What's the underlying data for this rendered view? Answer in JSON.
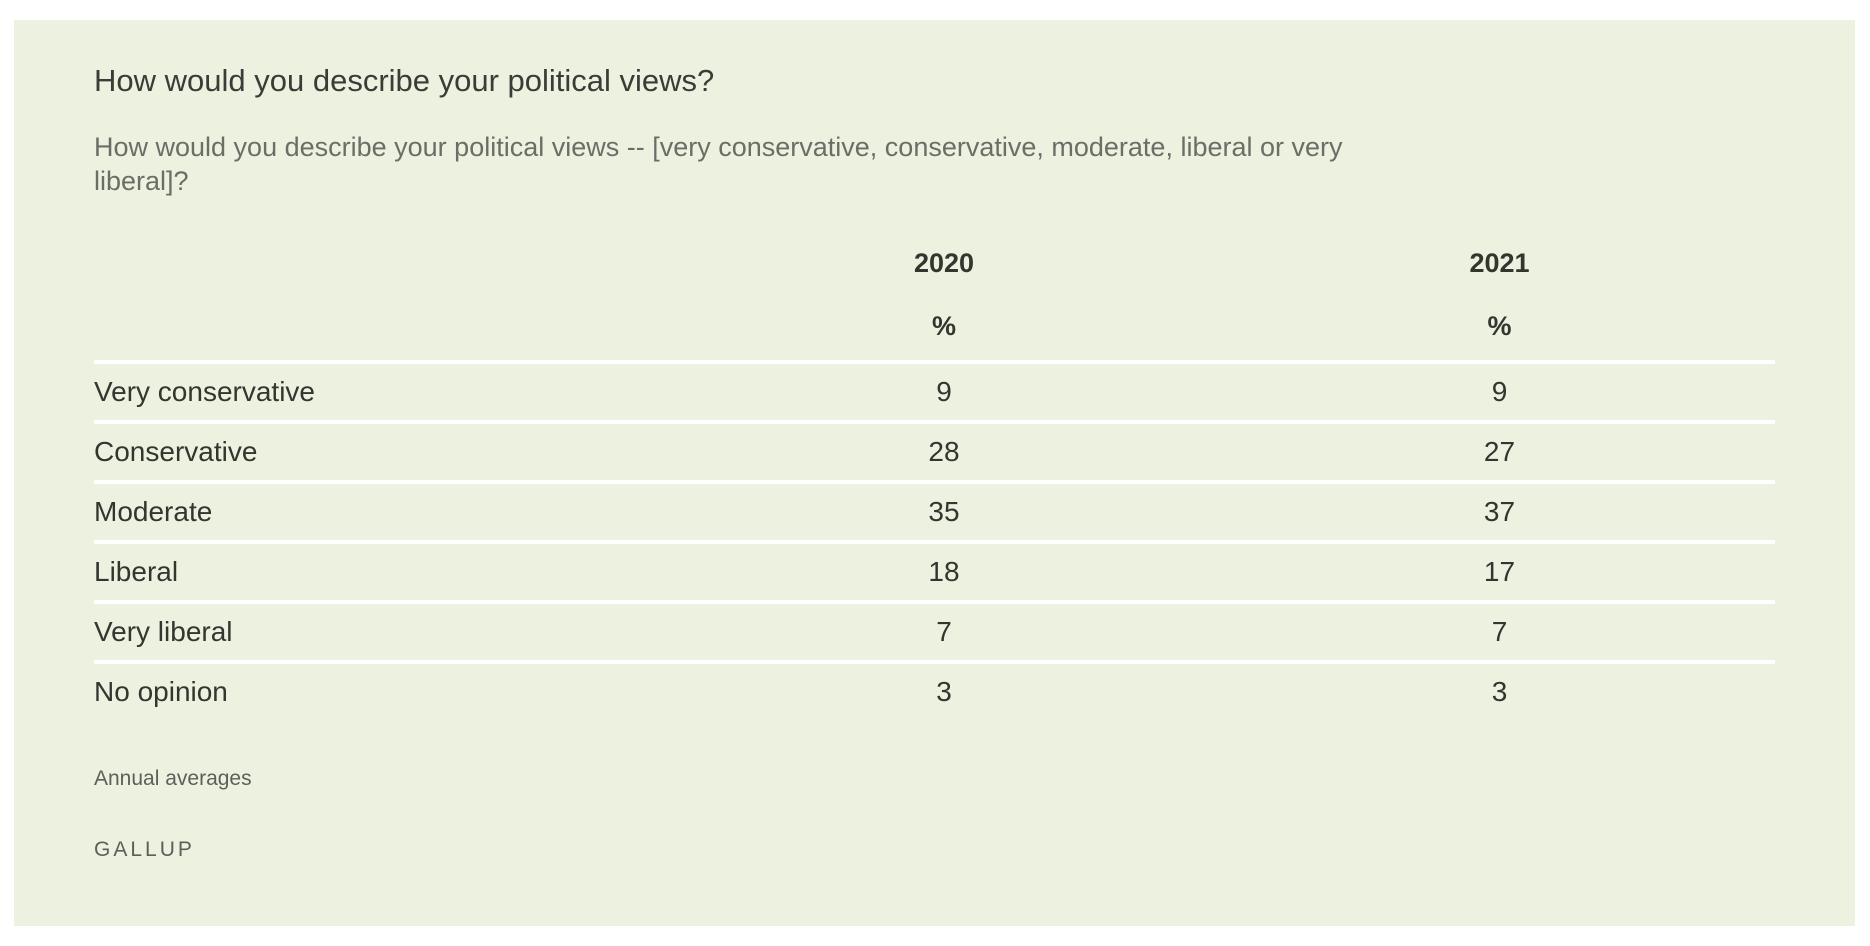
{
  "title": "How would you describe your political views?",
  "subtitle": "How would you describe your political views -- [very conservative, conservative, moderate, liberal or very liberal]?",
  "note": "Annual averages",
  "brand": "GALLUP",
  "chart_data": {
    "type": "table",
    "title": "How would you describe your political views?",
    "columns": [
      {
        "year": "2020",
        "unit": "%"
      },
      {
        "year": "2021",
        "unit": "%"
      }
    ],
    "rows": [
      {
        "label": "Very conservative",
        "values": [
          "9",
          "9"
        ]
      },
      {
        "label": "Conservative",
        "values": [
          "28",
          "27"
        ]
      },
      {
        "label": "Moderate",
        "values": [
          "35",
          "37"
        ]
      },
      {
        "label": "Liberal",
        "values": [
          "18",
          "17"
        ]
      },
      {
        "label": "Very liberal",
        "values": [
          "7",
          "7"
        ]
      },
      {
        "label": "No opinion",
        "values": [
          "3",
          "3"
        ]
      }
    ]
  }
}
